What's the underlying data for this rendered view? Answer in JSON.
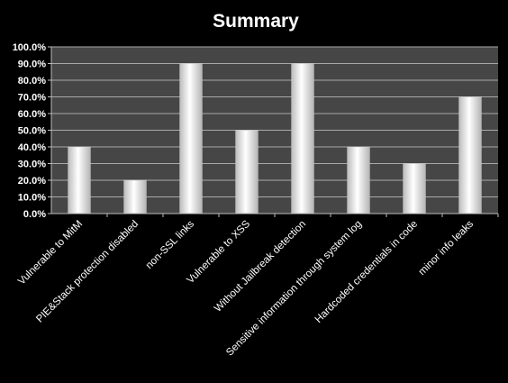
{
  "chart_data": {
    "type": "bar",
    "title": "Summary",
    "categories": [
      "Vulnerable to MitM",
      "PIE&Stack protection disabled",
      "non-SSL links",
      "Vulnerable to XSS",
      "Without Jailbreak detection",
      "Sensitive information through system log",
      "Hardcoded credentials in code",
      "minor info leaks"
    ],
    "values": [
      40,
      20,
      90,
      50,
      90,
      40,
      30,
      70
    ],
    "value_unit": "%",
    "ylim": [
      0,
      100
    ],
    "yticks": [
      "0.0%",
      "10.0%",
      "20.0%",
      "30.0%",
      "40.0%",
      "50.0%",
      "60.0%",
      "70.0%",
      "80.0%",
      "90.0%",
      "100.0%"
    ],
    "xlabel": "",
    "ylabel": "",
    "grid": true,
    "legend": "none",
    "colors": {
      "background": "#000000",
      "plot_area": "#464646",
      "gridline": "#a8a8a8",
      "bar_edge": "#cfcfcf",
      "bar_center": "#ffffff",
      "text": "#ffffff"
    }
  }
}
